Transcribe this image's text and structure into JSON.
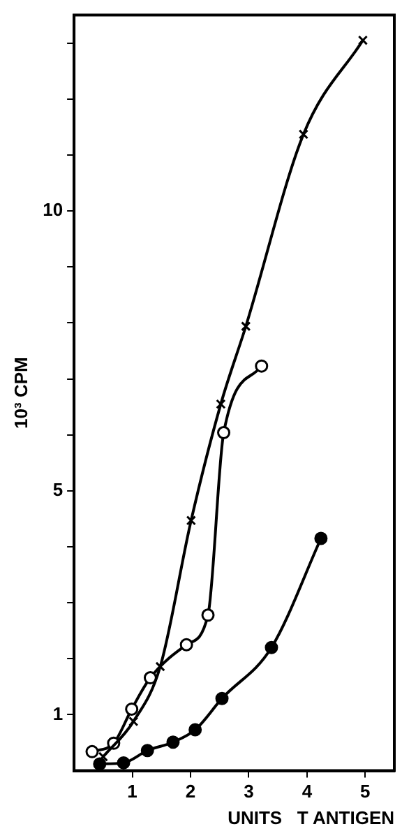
{
  "chart_data": {
    "type": "line",
    "xlabel": "UNITS   T ANTIGEN",
    "ylabel": "10³ CPM",
    "xlim": [
      0,
      5.5
    ],
    "ylim": [
      0,
      13.5
    ],
    "xticks": [
      1,
      2,
      3,
      4,
      5
    ],
    "yticks": [
      {
        "value": 1,
        "label": "1"
      },
      {
        "value": 2,
        "label": null
      },
      {
        "value": 3,
        "label": null
      },
      {
        "value": 4,
        "label": null
      },
      {
        "value": 5,
        "label": "5"
      },
      {
        "value": 6,
        "label": null
      },
      {
        "value": 7,
        "label": null
      },
      {
        "value": 8,
        "label": null
      },
      {
        "value": 9,
        "label": null
      },
      {
        "value": 10,
        "label": "10"
      },
      {
        "value": 11,
        "label": null
      },
      {
        "value": 12,
        "label": null
      },
      {
        "value": 13,
        "label": null
      }
    ],
    "grid": false,
    "legend": false,
    "line_style": "solid",
    "series": [
      {
        "color": "#000000",
        "marker": "cross",
        "x": [
          0.5,
          1.02,
          1.48,
          2.01,
          2.52,
          2.95,
          3.94,
          4.96
        ],
        "values": [
          0.25,
          0.88,
          1.86,
          4.47,
          6.55,
          7.94,
          11.37,
          13.05
        ]
      },
      {
        "color": "#000000",
        "colors": [
          "#ffffff",
          "#ffffff",
          "#ffffff",
          "#ffffff",
          "#ffffff",
          "#ffffff",
          "#ffffff",
          "#ffffff"
        ],
        "marker": "circle",
        "x": [
          0.31,
          0.68,
          0.99,
          1.31,
          1.93,
          2.3,
          2.57,
          3.22
        ],
        "values": [
          0.34,
          0.49,
          1.1,
          1.66,
          2.25,
          2.78,
          6.04,
          7.23
        ]
      },
      {
        "color": "#000000",
        "colors": [
          "#000000",
          "#000000",
          "#000000",
          "#000000",
          "#000000",
          "#000000",
          "#000000",
          "#000000"
        ],
        "marker": "circle",
        "x": [
          0.44,
          0.85,
          1.26,
          1.7,
          2.08,
          2.54,
          3.39,
          4.24
        ],
        "values": [
          0.12,
          0.14,
          0.36,
          0.51,
          0.73,
          1.29,
          2.2,
          4.15
        ]
      }
    ]
  }
}
